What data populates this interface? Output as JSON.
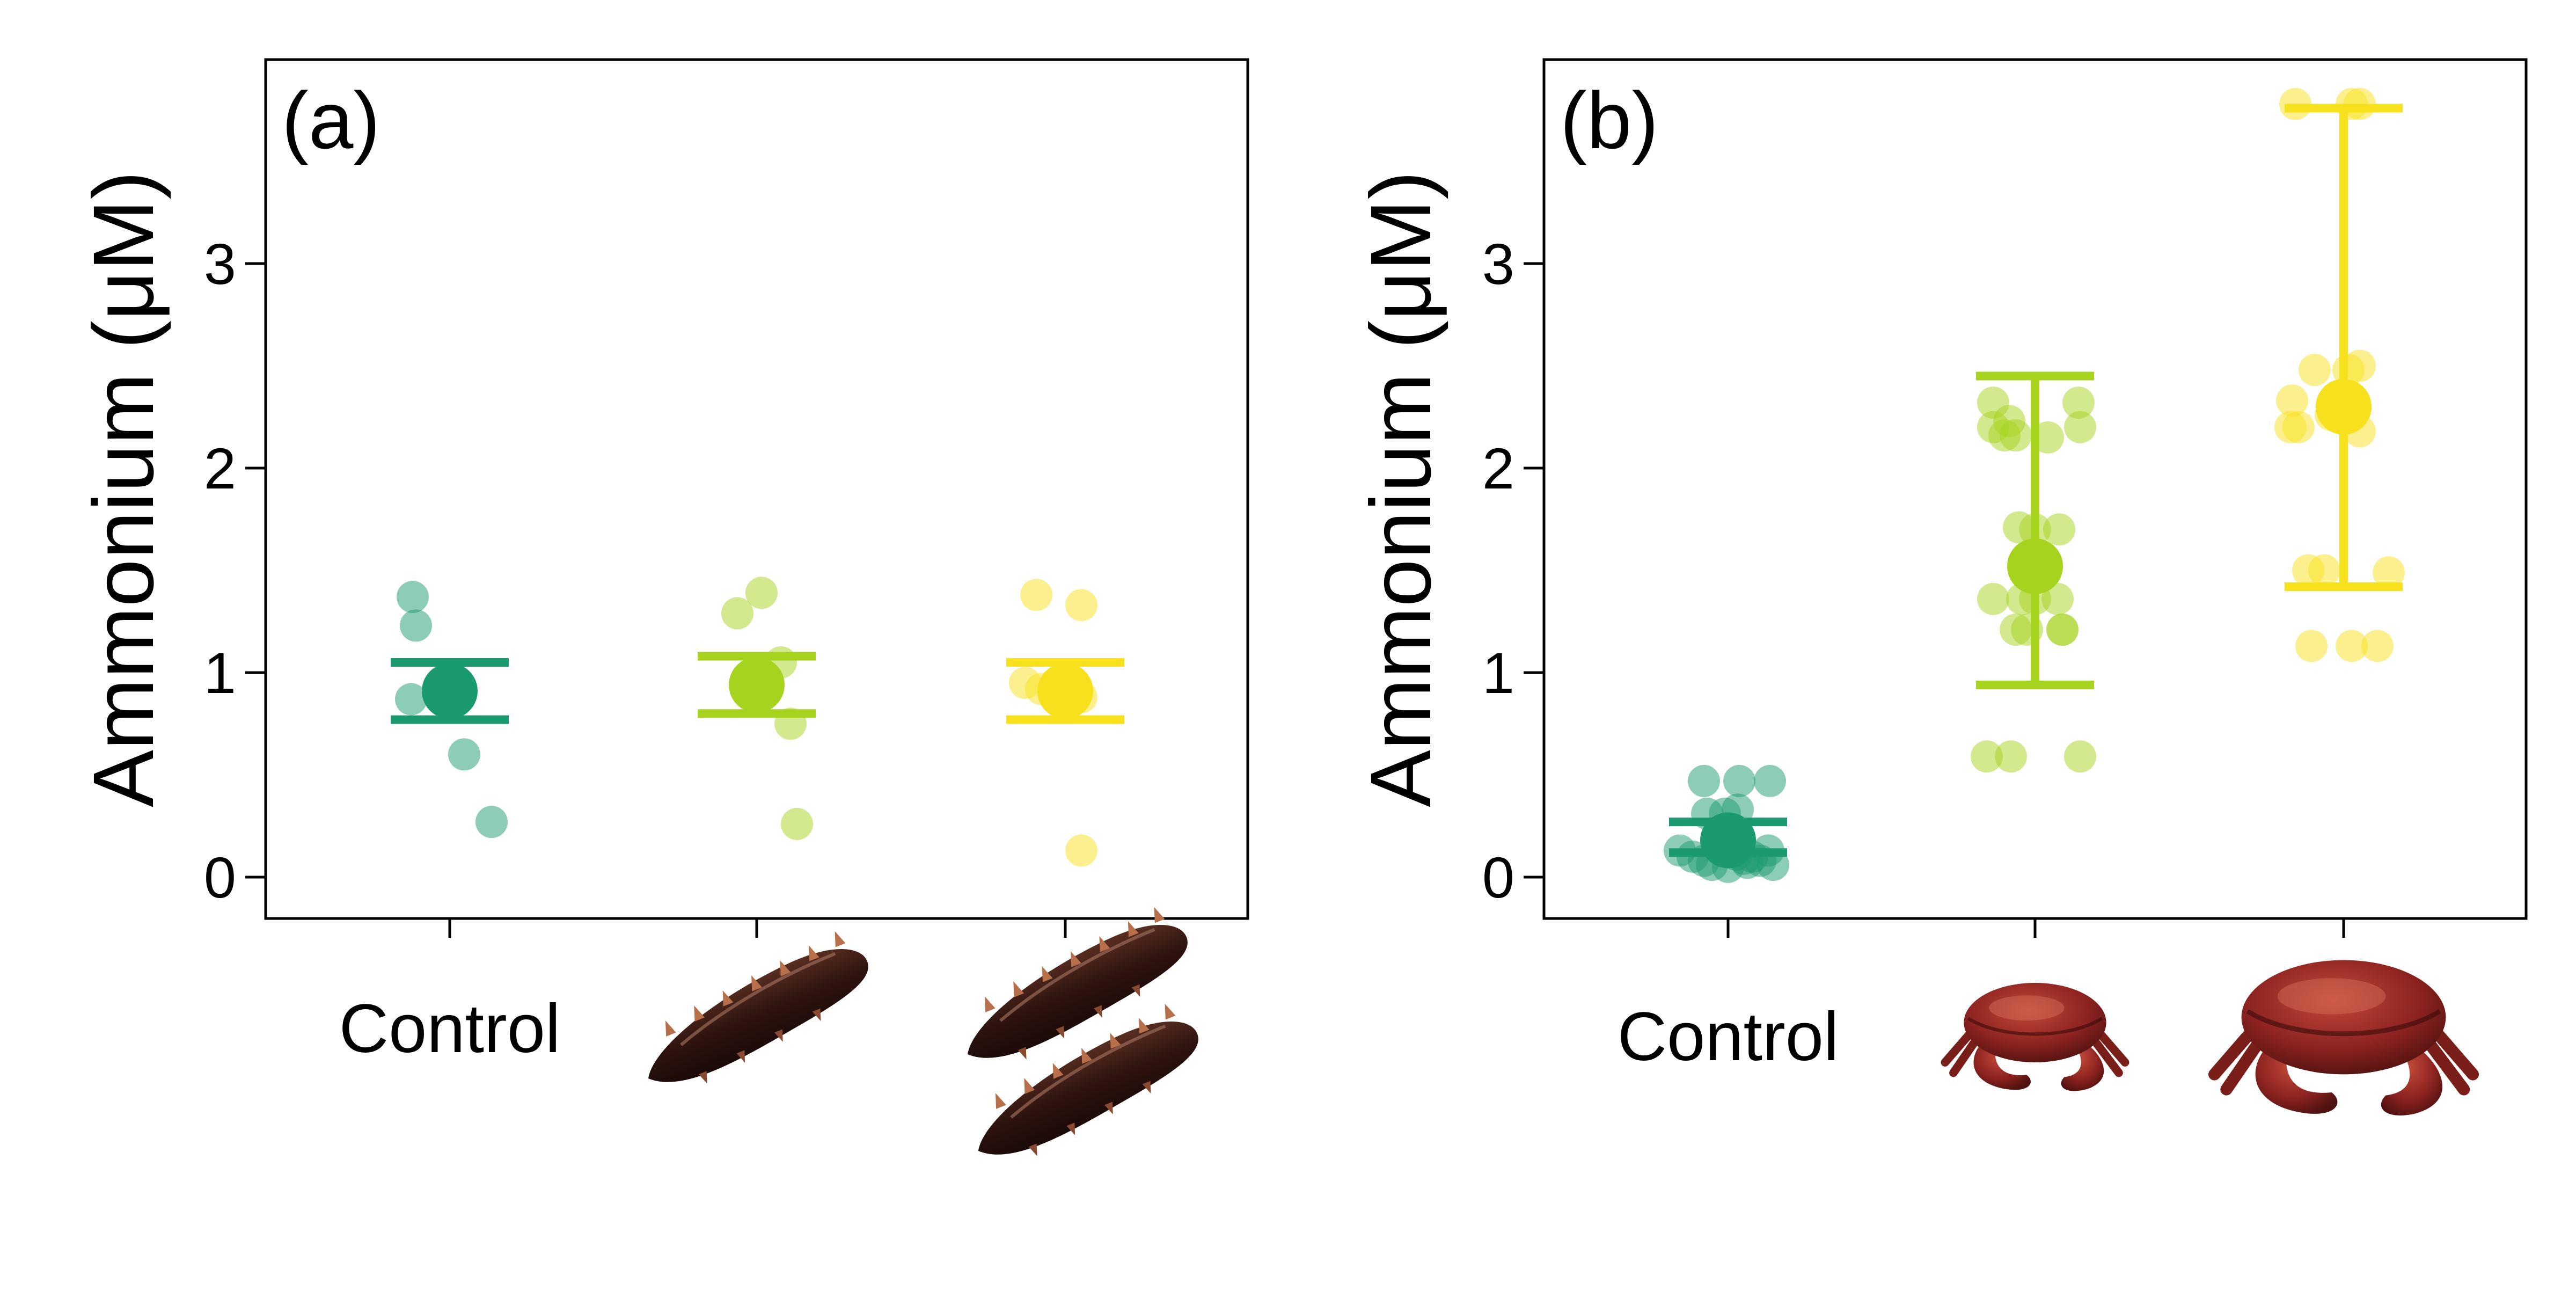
{
  "colors": {
    "control": "#1b9a70",
    "low": "#a6d41e",
    "high": "#f7e11c"
  },
  "chart_data": [
    {
      "type": "scatter",
      "panel_label": "(a)",
      "xlabel": "",
      "ylabel": "Ammonium (μM)",
      "ylim": [
        -0.2,
        4.0
      ],
      "y_ticks": [
        "0",
        "1",
        "2",
        "3"
      ],
      "categories": [
        "Control",
        "sea-cucumber-1",
        "sea-cucumber-2"
      ],
      "category_labels": [
        "Control",
        "",
        ""
      ],
      "category_icons": [
        "",
        "sea-cucumber-icon",
        "two-sea-cucumbers-icon"
      ],
      "grid": false,
      "legend": "none",
      "groups": [
        {
          "color_key": "control",
          "points": [
            [
              -0.23,
              1.37
            ],
            [
              -0.21,
              1.23
            ],
            [
              -0.24,
              0.87
            ],
            [
              0.09,
              0.6
            ],
            [
              0.26,
              0.27
            ]
          ],
          "mean": 0.91,
          "err_low": 0.77,
          "err_high": 1.05
        },
        {
          "color_key": "low",
          "points": [
            [
              -0.12,
              1.29
            ],
            [
              0.03,
              1.39
            ],
            [
              0.15,
              1.05
            ],
            [
              0.21,
              0.75
            ],
            [
              0.25,
              0.26
            ]
          ],
          "mean": 0.94,
          "err_low": 0.8,
          "err_high": 1.08
        },
        {
          "color_key": "high",
          "points": [
            [
              -0.18,
              1.38
            ],
            [
              0.1,
              1.33
            ],
            [
              -0.25,
              0.95
            ],
            [
              -0.15,
              0.92
            ],
            [
              0.1,
              0.88
            ],
            [
              0.1,
              0.13
            ]
          ],
          "mean": 0.91,
          "err_low": 0.77,
          "err_high": 1.05
        }
      ]
    },
    {
      "type": "scatter",
      "panel_label": "(b)",
      "xlabel": "",
      "ylabel": "Ammonium (μM)",
      "ylim": [
        -0.2,
        4.0
      ],
      "y_ticks": [
        "0",
        "1",
        "2",
        "3"
      ],
      "categories": [
        "Control",
        "small-crab",
        "large-crab"
      ],
      "category_labels": [
        "Control",
        "",
        ""
      ],
      "category_icons": [
        "",
        "small-crab-icon",
        "large-crab-icon"
      ],
      "grid": false,
      "legend": "none",
      "groups": [
        {
          "color_key": "control",
          "points": [
            [
              -0.15,
              0.47
            ],
            [
              0.07,
              0.47
            ],
            [
              0.26,
              0.47
            ],
            [
              -0.13,
              0.31
            ],
            [
              -0.02,
              0.31
            ],
            [
              0.06,
              0.33
            ],
            [
              -0.3,
              0.13
            ],
            [
              -0.22,
              0.1
            ],
            [
              -0.15,
              0.08
            ],
            [
              -0.1,
              0.06
            ],
            [
              -0.05,
              0.14
            ],
            [
              0.0,
              0.05
            ],
            [
              0.05,
              0.11
            ],
            [
              0.1,
              0.09
            ],
            [
              0.15,
              0.1
            ],
            [
              0.2,
              0.08
            ],
            [
              0.25,
              0.13
            ],
            [
              0.28,
              0.06
            ],
            [
              0.12,
              0.07
            ]
          ],
          "mean": 0.18,
          "err_low": 0.12,
          "err_high": 0.27
        },
        {
          "color_key": "low",
          "points": [
            [
              -0.26,
              2.32
            ],
            [
              -0.26,
              2.2
            ],
            [
              -0.19,
              2.16
            ],
            [
              -0.16,
              2.23
            ],
            [
              -0.12,
              2.16
            ],
            [
              0.08,
              2.15
            ],
            [
              0.27,
              2.32
            ],
            [
              0.28,
              2.2
            ],
            [
              -0.1,
              1.71
            ],
            [
              0.0,
              1.7
            ],
            [
              0.15,
              1.7
            ],
            [
              -0.26,
              1.36
            ],
            [
              -0.08,
              1.36
            ],
            [
              0.0,
              1.36
            ],
            [
              0.14,
              1.36
            ],
            [
              -0.12,
              1.21
            ],
            [
              -0.05,
              1.21
            ],
            [
              0.17,
              1.21
            ],
            [
              0.17,
              1.21
            ],
            [
              -0.3,
              0.59
            ],
            [
              -0.15,
              0.59
            ],
            [
              0.28,
              0.59
            ]
          ],
          "mean": 1.52,
          "err_low": 0.94,
          "err_high": 2.45
        },
        {
          "color_key": "high",
          "points": [
            [
              -0.3,
              3.78
            ],
            [
              0.05,
              3.78
            ],
            [
              0.1,
              3.78
            ],
            [
              -0.32,
              2.33
            ],
            [
              -0.18,
              2.48
            ],
            [
              0.03,
              2.48
            ],
            [
              0.1,
              2.5
            ],
            [
              -0.33,
              2.2
            ],
            [
              -0.28,
              2.2
            ],
            [
              -0.08,
              2.26
            ],
            [
              0.02,
              2.26
            ],
            [
              0.06,
              2.3
            ],
            [
              0.1,
              2.18
            ],
            [
              -0.22,
              1.5
            ],
            [
              -0.12,
              1.5
            ],
            [
              0.28,
              1.49
            ],
            [
              -0.2,
              1.13
            ],
            [
              0.05,
              1.13
            ],
            [
              0.21,
              1.13
            ]
          ],
          "mean": 2.3,
          "err_low": 1.42,
          "err_high": 3.76
        }
      ]
    }
  ]
}
